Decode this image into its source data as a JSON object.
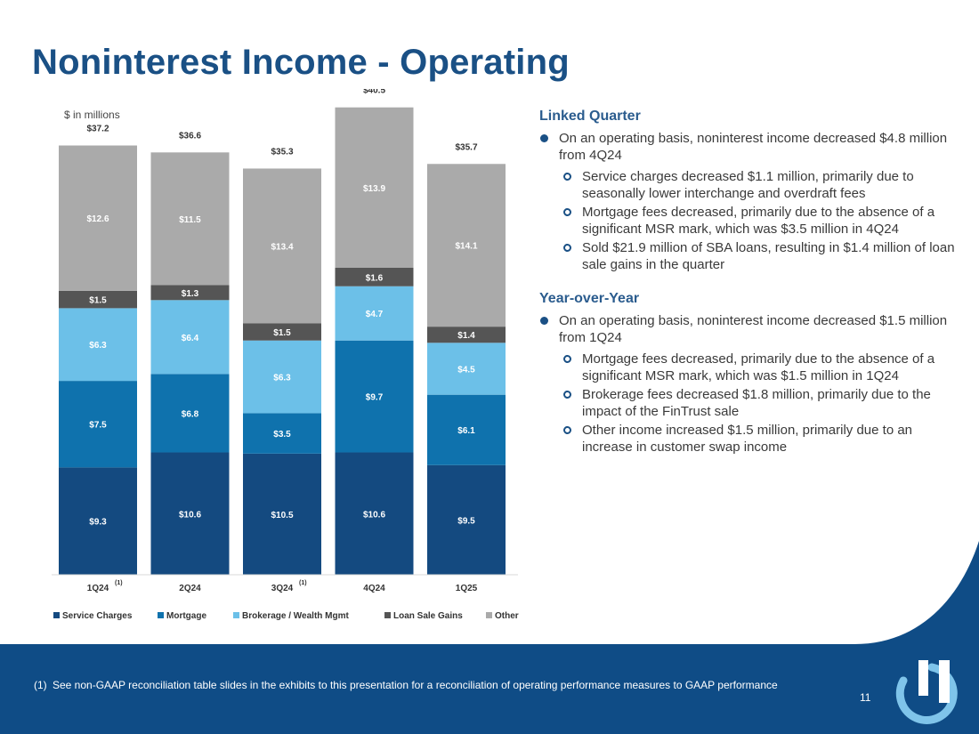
{
  "slide": {
    "title": "Noninterest Income - Operating",
    "units_label": "$ in millions",
    "page_number": "11"
  },
  "colors": {
    "title": "#1a5085",
    "footer_bg": "#0f4c86",
    "logo_light": "#7fc4ea",
    "logo_white": "#ffffff"
  },
  "chart_data": {
    "type": "bar",
    "stacked": true,
    "categories": [
      "1Q24",
      "2Q24",
      "3Q24",
      "4Q24",
      "1Q25"
    ],
    "category_notes": [
      "(1)",
      "",
      "(1)",
      "",
      ""
    ],
    "series": [
      {
        "name": "Service Charges",
        "color": "#144a80",
        "values": [
          9.3,
          10.6,
          10.5,
          10.6,
          9.5
        ],
        "labels": [
          "$9.3",
          "$10.6",
          "$10.5",
          "$10.6",
          "$9.5"
        ]
      },
      {
        "name": "Mortgage",
        "color": "#0f72ad",
        "values": [
          7.5,
          6.8,
          3.5,
          9.7,
          6.1
        ],
        "labels": [
          "$7.5",
          "$6.8",
          "$3.5",
          "$9.7",
          "$6.1"
        ]
      },
      {
        "name": "Brokerage / Wealth Mgmt",
        "color": "#6cc0e8",
        "values": [
          6.3,
          6.4,
          6.3,
          4.7,
          4.5
        ],
        "labels": [
          "$6.3",
          "$6.4",
          "$6.3",
          "$4.7",
          "$4.5"
        ]
      },
      {
        "name": "Loan Sale Gains",
        "color": "#555555",
        "values": [
          1.5,
          1.3,
          1.5,
          1.6,
          1.4
        ],
        "labels": [
          "$1.5",
          "$1.3",
          "$1.5",
          "$1.6",
          "$1.4"
        ]
      },
      {
        "name": "Other",
        "color": "#aaaaaa",
        "values": [
          12.6,
          11.5,
          13.4,
          13.9,
          14.1
        ],
        "labels": [
          "$12.6",
          "$11.5",
          "$13.4",
          "$13.9",
          "$14.1"
        ]
      }
    ],
    "totals": [
      37.2,
      36.6,
      35.3,
      40.5,
      35.7
    ],
    "total_labels": [
      "$37.2",
      "$36.6",
      "$35.3",
      "$40.5",
      "$35.7"
    ],
    "ylim": [
      0,
      40.5
    ],
    "ylabel": "$ in millions",
    "legend_position": "bottom",
    "grid": false
  },
  "linked_quarter": {
    "heading": "Linked Quarter",
    "main": "On an operating basis, noninterest income decreased $4.8 million from 4Q24",
    "subs": [
      "Service charges decreased $1.1 million, primarily due to seasonally lower interchange and overdraft fees",
      "Mortgage fees decreased, primarily due to the absence of a significant MSR mark, which was $3.5 million in 4Q24",
      "Sold $21.9 million of SBA loans, resulting in $1.4 million of loan sale gains in the quarter"
    ]
  },
  "year_over_year": {
    "heading": "Year-over-Year",
    "main": "On an operating basis, noninterest income decreased $1.5 million from 1Q24",
    "subs": [
      "Mortgage fees decreased, primarily due to the absence of a significant MSR mark, which was $1.5 million in 1Q24",
      "Brokerage fees decreased $1.8 million, primarily due to the impact of the FinTrust sale",
      "Other income increased $1.5 million, primarily due to an increase in customer swap income"
    ]
  },
  "footnote": {
    "marker": "(1)",
    "text": "See non-GAAP reconciliation table slides in the exhibits to this presentation for a reconciliation of operating performance measures to GAAP performance"
  }
}
